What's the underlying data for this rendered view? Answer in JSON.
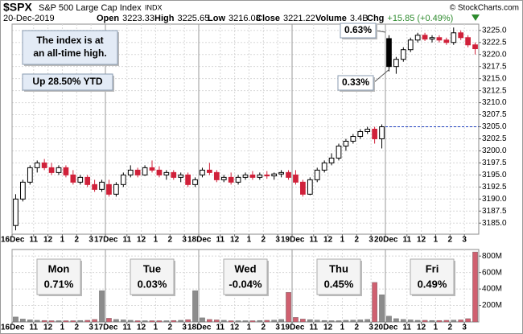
{
  "header": {
    "symbol": "$SPX",
    "name": "S&P 500 Large Cap Index",
    "exchange": "INDX",
    "date": "20-Dec-2019",
    "copyright": "© StockCharts.com",
    "stats": [
      {
        "label": "Open",
        "value": "3223.33"
      },
      {
        "label": "High",
        "value": "3225.65"
      },
      {
        "label": "Low",
        "value": "3216.03"
      },
      {
        "label": "Close",
        "value": "3221.22"
      },
      {
        "label": "Volume",
        "value": "3.4B"
      },
      {
        "label": "Chg",
        "value": "+15.85 (+0.49%)"
      }
    ]
  },
  "chart_data": [
    {
      "type": "candlestick",
      "open": [
        3184.5,
        3190,
        3193.5,
        3196.5,
        3197.5,
        3196.5,
        3195.5,
        3196.5,
        3195,
        3193.5,
        3194.5,
        3193,
        3192,
        3193,
        3191,
        3193,
        3195,
        3196,
        3195,
        3196.5,
        3196,
        3195,
        3195.5,
        3194.5,
        3195,
        3193,
        3195,
        3196,
        3195.5,
        3194,
        3194.5,
        3193.5,
        3194.5,
        3195,
        3194.5,
        3195,
        3194.8,
        3195.2,
        3195.5,
        3195,
        3193.5,
        3191,
        3194,
        3196,
        3197.5,
        3198.5,
        3201,
        3202,
        3203,
        3204,
        3204.5,
        3202.5,
        3223.3,
        3217.5,
        3219,
        3221,
        3223,
        3224,
        3223.2,
        3223.5,
        3223,
        3222.5,
        3224.5,
        3223.5,
        3222
      ],
      "high": [
        3191,
        3194,
        3197,
        3198,
        3198.3,
        3197.5,
        3197,
        3197,
        3196,
        3195,
        3195,
        3194,
        3194,
        3194,
        3193.5,
        3195.5,
        3197,
        3196.5,
        3197,
        3198,
        3196.8,
        3196,
        3196,
        3195.5,
        3195.5,
        3194.5,
        3196.5,
        3197.5,
        3196,
        3195,
        3195.5,
        3195,
        3195.5,
        3195.8,
        3195.5,
        3195.8,
        3195.5,
        3196,
        3196,
        3196,
        3194,
        3194.5,
        3196.5,
        3198,
        3199.5,
        3201.5,
        3202.5,
        3203.5,
        3204.5,
        3205,
        3205,
        3205.5,
        3224,
        3219.5,
        3221.5,
        3223.5,
        3224.5,
        3224.5,
        3224,
        3224,
        3223.5,
        3225.6,
        3225,
        3224,
        3222.5
      ],
      "low": [
        3183.5,
        3189.5,
        3193,
        3195.5,
        3196,
        3195,
        3195,
        3194.5,
        3193,
        3193,
        3192.5,
        3191.5,
        3191.5,
        3190.5,
        3190.5,
        3192.5,
        3194.5,
        3194.5,
        3194.8,
        3195.5,
        3194.5,
        3194,
        3194,
        3193.5,
        3192.5,
        3192.5,
        3194.5,
        3195,
        3193.5,
        3193.5,
        3193,
        3193,
        3194,
        3194,
        3194,
        3194.2,
        3194,
        3194.5,
        3194,
        3193,
        3190.5,
        3190.8,
        3193.5,
        3195.5,
        3197,
        3198,
        3200,
        3201.5,
        3202.5,
        3203.5,
        3201.5,
        3200.5,
        3216.5,
        3216,
        3218.5,
        3220.5,
        3222.5,
        3222.8,
        3222.5,
        3222.5,
        3222,
        3222,
        3223,
        3221.5,
        3220
      ],
      "close": [
        3190,
        3193.5,
        3196.5,
        3197.5,
        3196.5,
        3195.5,
        3196.5,
        3195,
        3193.5,
        3194.5,
        3193,
        3192,
        3193.5,
        3191,
        3193,
        3195,
        3196,
        3195,
        3196.5,
        3196,
        3195,
        3195.5,
        3194.5,
        3195,
        3193,
        3194,
        3196,
        3195.5,
        3194,
        3194.5,
        3193.5,
        3194.5,
        3195,
        3194.5,
        3195,
        3194.8,
        3195.2,
        3195.5,
        3194.5,
        3193.5,
        3191,
        3194,
        3196,
        3197.5,
        3198.5,
        3201,
        3202,
        3203,
        3204,
        3204.5,
        3202.5,
        3205,
        3217.5,
        3219,
        3221,
        3223,
        3224,
        3223.2,
        3223.5,
        3223,
        3222.5,
        3224.5,
        3223.5,
        3222,
        3221.2
      ],
      "up_color": "#000000",
      "down_color": "#d0213a",
      "xlim": [
        0,
        65
      ],
      "xticks": [
        {
          "value": 0,
          "label": "16Dec"
        },
        {
          "value": 3,
          "label": "11"
        },
        {
          "value": 5,
          "label": "12"
        },
        {
          "value": 7,
          "label": "1"
        },
        {
          "value": 9,
          "label": "2"
        },
        {
          "value": 11,
          "label": "3"
        },
        {
          "value": 13,
          "label": "17Dec"
        },
        {
          "value": 16,
          "label": "11"
        },
        {
          "value": 18,
          "label": "12"
        },
        {
          "value": 20,
          "label": "1"
        },
        {
          "value": 22,
          "label": "2"
        },
        {
          "value": 24,
          "label": "3"
        },
        {
          "value": 26,
          "label": "18Dec"
        },
        {
          "value": 29,
          "label": "11"
        },
        {
          "value": 31,
          "label": "12"
        },
        {
          "value": 33,
          "label": "1"
        },
        {
          "value": 35,
          "label": "2"
        },
        {
          "value": 37,
          "label": "3"
        },
        {
          "value": 39,
          "label": "19Dec"
        },
        {
          "value": 42,
          "label": "11"
        },
        {
          "value": 44,
          "label": "12"
        },
        {
          "value": 46,
          "label": "1"
        },
        {
          "value": 48,
          "label": "2"
        },
        {
          "value": 50,
          "label": "3"
        },
        {
          "value": 52,
          "label": "20Dec"
        },
        {
          "value": 55,
          "label": "11"
        },
        {
          "value": 57,
          "label": "12"
        },
        {
          "value": 59,
          "label": "1"
        },
        {
          "value": 61,
          "label": "2"
        },
        {
          "value": 63,
          "label": "3"
        }
      ],
      "ylim": [
        3182.7,
        3226.3
      ],
      "yticks": [
        {
          "value": 3185,
          "label": "3185.0"
        },
        3187.5,
        {
          "value": 3190,
          "label": "3190.0"
        },
        3192.5,
        {
          "value": 3195,
          "label": "3195.0"
        },
        3197.5,
        {
          "value": 3200,
          "label": "3200.0"
        },
        3202.5,
        {
          "value": 3205,
          "label": "3205.0"
        },
        3207.5,
        {
          "value": 3210,
          "label": "3210.0"
        },
        3212.5,
        {
          "value": 3215,
          "label": "3215.0"
        },
        3217.5,
        {
          "value": 3220,
          "label": "3220.0"
        },
        3222.5,
        {
          "value": 3225,
          "label": "3225.0"
        }
      ],
      "grid": true,
      "reference_line": 3205,
      "reference_color": "#1f3fbf",
      "annotations": [
        {
          "text": [
            "The index is at",
            "an all-time high."
          ]
        },
        {
          "text": [
            "Up 28.50% YTD"
          ]
        },
        {
          "text": [
            "0.63%"
          ]
        },
        {
          "text": [
            "0.33%"
          ]
        }
      ]
    },
    {
      "type": "bar",
      "values": [
        60,
        35,
        25,
        20,
        18,
        15,
        15,
        15,
        15,
        18,
        20,
        30,
        380,
        45,
        30,
        25,
        20,
        15,
        15,
        15,
        15,
        15,
        18,
        20,
        28,
        380,
        50,
        30,
        25,
        20,
        15,
        15,
        15,
        15,
        18,
        20,
        22,
        30,
        360,
        55,
        35,
        28,
        22,
        18,
        15,
        15,
        20,
        22,
        25,
        30,
        480,
        330,
        70,
        40,
        30,
        25,
        20,
        20,
        18,
        18,
        20,
        22,
        25,
        40,
        850
      ],
      "up_color": "#8c8c8c",
      "down_color": "#d06070",
      "xlim": [
        0,
        65
      ],
      "xticks": [
        {
          "value": 0,
          "label": "16Dec"
        },
        {
          "value": 3,
          "label": "11"
        },
        {
          "value": 5,
          "label": "12"
        },
        {
          "value": 7,
          "label": "1"
        },
        {
          "value": 9,
          "label": "2"
        },
        {
          "value": 11,
          "label": "3"
        },
        {
          "value": 13,
          "label": "17Dec"
        },
        {
          "value": 16,
          "label": "11"
        },
        {
          "value": 18,
          "label": "12"
        },
        {
          "value": 20,
          "label": "1"
        },
        {
          "value": 22,
          "label": "2"
        },
        {
          "value": 24,
          "label": "3"
        },
        {
          "value": 26,
          "label": "18Dec"
        },
        {
          "value": 29,
          "label": "11"
        },
        {
          "value": 31,
          "label": "12"
        },
        {
          "value": 33,
          "label": "1"
        },
        {
          "value": 35,
          "label": "2"
        },
        {
          "value": 37,
          "label": "3"
        },
        {
          "value": 39,
          "label": "19Dec"
        },
        {
          "value": 42,
          "label": "11"
        },
        {
          "value": 44,
          "label": "12"
        },
        {
          "value": 46,
          "label": "1"
        },
        {
          "value": 48,
          "label": "2"
        },
        {
          "value": 50,
          "label": "3"
        },
        {
          "value": 52,
          "label": "20Dec"
        },
        {
          "value": 55,
          "label": "11"
        },
        {
          "value": 57,
          "label": "12"
        },
        {
          "value": 59,
          "label": "1"
        },
        {
          "value": 61,
          "label": "2"
        },
        {
          "value": 63,
          "label": "3"
        }
      ],
      "ylim": [
        0,
        880
      ],
      "yticks": [
        {
          "value": 200,
          "label": "200M"
        },
        {
          "value": 400,
          "label": "400M"
        },
        {
          "value": 600,
          "label": "600M"
        },
        {
          "value": 800,
          "label": "800M"
        }
      ],
      "grid": true,
      "day_labels": [
        {
          "day": "Mon",
          "change": "0.71%",
          "color": "#2e8b2e"
        },
        {
          "day": "Tue",
          "change": "0.03%",
          "color": "#2e8b2e"
        },
        {
          "day": "Wed",
          "change": "-0.04%",
          "color": "#c00000"
        },
        {
          "day": "Thu",
          "change": "0.45%",
          "color": "#2e8b2e"
        },
        {
          "day": "Fri",
          "change": "0.49%",
          "color": "#2e8b2e"
        }
      ]
    }
  ]
}
